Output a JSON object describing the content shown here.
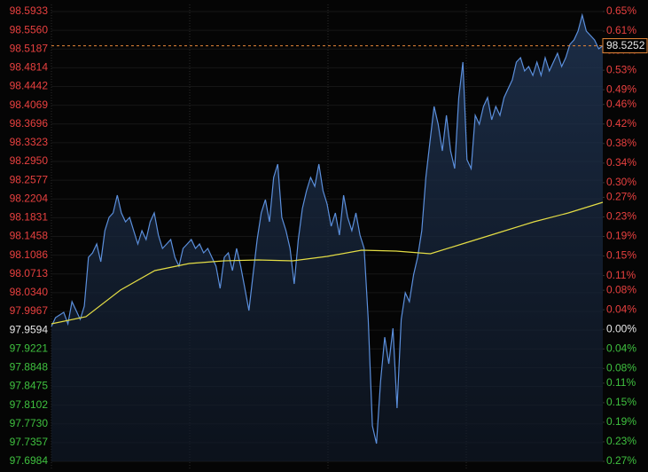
{
  "chart_data": {
    "type": "line",
    "series": [
      {
        "color": "#5b8fdc",
        "values": [
          97.9667,
          97.9844,
          97.9897,
          97.995,
          97.972,
          98.0161,
          97.9985,
          97.9808,
          98.0073,
          98.1044,
          98.1132,
          98.1309,
          98.0956,
          98.1573,
          98.1838,
          98.1926,
          98.2279,
          98.1926,
          98.175,
          98.1838,
          98.1573,
          98.1309,
          98.1573,
          98.1397,
          98.175,
          98.1926,
          98.1485,
          98.122,
          98.1309,
          98.1397,
          98.1044,
          98.0867,
          98.122,
          98.1309,
          98.1397,
          98.122,
          98.1309,
          98.1132,
          98.122,
          98.1044,
          98.0867,
          98.0426,
          98.1044,
          98.1132,
          98.0779,
          98.122,
          98.0867,
          98.0426,
          97.9985,
          98.0691,
          98.1397,
          98.1926,
          98.2191,
          98.175,
          98.2632,
          98.2897,
          98.1838,
          98.1573,
          98.122,
          98.0514,
          98.1397,
          98.2015,
          98.2368,
          98.2632,
          98.2456,
          98.2897,
          98.2368,
          98.2103,
          98.1662,
          98.1926,
          98.1485,
          98.2279,
          98.1838,
          98.1573,
          98.1926,
          98.1485,
          98.122,
          97.9808,
          97.769,
          97.7337,
          97.8573,
          97.9455,
          97.8926,
          97.9632,
          97.8043,
          97.9808,
          98.0338,
          98.0161,
          98.0691,
          98.1044,
          98.1573,
          98.2632,
          98.3338,
          98.4044,
          98.3691,
          98.3162,
          98.3868,
          98.3162,
          98.2809,
          98.4221,
          98.4927,
          98.2985,
          98.2809,
          98.3868,
          98.3691,
          98.4044,
          98.4221,
          98.378,
          98.4044,
          98.3868,
          98.4221,
          98.4397,
          98.4574,
          98.4927,
          98.5015,
          98.475,
          98.4839,
          98.4662,
          98.4927,
          98.4662,
          98.5015,
          98.475,
          98.4927,
          98.5103,
          98.4839,
          98.5015,
          98.528,
          98.5368,
          98.5545,
          98.5862,
          98.5545,
          98.5456,
          98.5368,
          98.5192,
          98.5252
        ]
      },
      {
        "color": "#e4dd45",
        "values": [
          97.972,
          97.9861,
          98.0391,
          98.0779,
          98.092,
          98.0973,
          98.0991,
          98.0973,
          98.1062,
          98.1185,
          98.1167,
          98.1115,
          98.1326,
          98.1538,
          98.175,
          98.1926,
          98.2138
        ]
      }
    ],
    "ylim": [
      97.6984,
      98.5933
    ],
    "yticks": [
      98.5933,
      {
        "value": 98.556,
        "label": "98.5560"
      },
      98.5187,
      98.4814,
      98.4442,
      98.4069,
      98.3696,
      98.3323,
      {
        "value": 98.295,
        "label": "98.2950"
      },
      98.2577,
      98.2204,
      98.1831,
      98.1458,
      98.1086,
      98.0713,
      {
        "value": 98.034,
        "label": "98.0340"
      },
      97.9967,
      97.9594,
      97.9221,
      97.8848,
      97.8475,
      97.8102,
      {
        "value": 97.773,
        "label": "97.7730"
      },
      97.7357,
      97.6984
    ],
    "y2lim": [
      -0.27,
      0.65
    ],
    "y2ticks": [
      {
        "value": 0.65,
        "label": "0.65%"
      },
      {
        "value": 0.61,
        "label": "0.61%"
      },
      {
        "value": 0.57,
        "label": "0.57%"
      },
      {
        "value": 0.53,
        "label": "0.53%"
      },
      {
        "value": 0.49,
        "label": "0.49%"
      },
      {
        "value": 0.46,
        "label": "0.46%"
      },
      {
        "value": 0.42,
        "label": "0.42%"
      },
      {
        "value": 0.38,
        "label": "0.38%"
      },
      {
        "value": 0.34,
        "label": "0.34%"
      },
      {
        "value": 0.3,
        "label": "0.30%"
      },
      {
        "value": 0.27,
        "label": "0.27%"
      },
      {
        "value": 0.23,
        "label": "0.23%"
      },
      {
        "value": 0.19,
        "label": "0.19%"
      },
      {
        "value": 0.15,
        "label": "0.15%"
      },
      {
        "value": 0.11,
        "label": "0.11%"
      },
      {
        "value": 0.08,
        "label": "0.08%"
      },
      {
        "value": 0.04,
        "label": "0.04%"
      },
      {
        "value": 0,
        "label": "0.00%"
      },
      {
        "value": -0.04,
        "label": "0.04%"
      },
      {
        "value": -0.08,
        "label": "0.08%"
      },
      {
        "value": -0.11,
        "label": "0.11%"
      },
      {
        "value": -0.15,
        "label": "0.15%"
      },
      {
        "value": -0.19,
        "label": "0.19%"
      },
      {
        "value": -0.23,
        "label": "0.23%"
      },
      {
        "value": -0.27,
        "label": "0.27%"
      }
    ],
    "up_color": "#e8403f",
    "down_color": "#3fc13f",
    "flat_color": "#e8e8e8",
    "last_color": "#e8893a",
    "grid": true
  }
}
